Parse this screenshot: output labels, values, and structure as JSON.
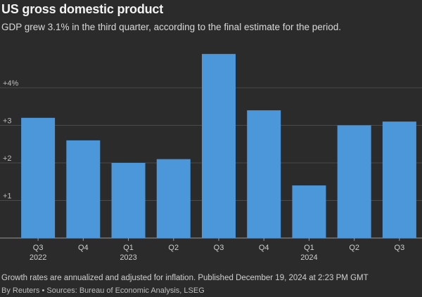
{
  "chart_data": {
    "type": "bar",
    "title": "US gross domestic product",
    "subtitle": "GDP grew 3.1% in the third quarter, according to the final estimate for the period.",
    "categories": [
      "Q3",
      "Q4",
      "Q1",
      "Q2",
      "Q3",
      "Q4",
      "Q1",
      "Q2",
      "Q3"
    ],
    "year_labels": [
      "2022",
      "",
      "2023",
      "",
      "",
      "",
      "2024",
      "",
      ""
    ],
    "values": [
      3.2,
      2.6,
      2.0,
      2.1,
      4.9,
      3.4,
      1.4,
      3.0,
      3.1
    ],
    "y_ticks": [
      {
        "value": 1,
        "label": "+1"
      },
      {
        "value": 2,
        "label": "+2"
      },
      {
        "value": 3,
        "label": "+3"
      },
      {
        "value": 4,
        "label": "+4%"
      }
    ],
    "ylim": [
      0,
      5
    ],
    "xlabel": "",
    "ylabel": "",
    "grid": true,
    "bar_color": "#4b97d9",
    "footnote": "Growth rates are annualized and adjusted for inflation. Published December 19, 2024 at 2:23 PM GMT",
    "credit": "By Reuters • Sources: Bureau of Economic Analysis, LSEG"
  }
}
